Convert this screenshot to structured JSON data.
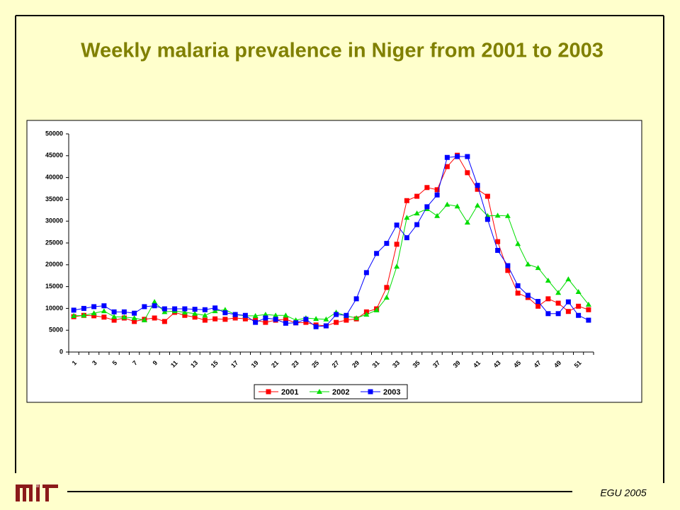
{
  "title": "Weekly malaria prevalence in Niger from 2001 to 2003",
  "footer": "EGU 2005",
  "chart_data": {
    "type": "line",
    "categories": [
      1,
      null,
      3,
      null,
      5,
      null,
      7,
      null,
      9,
      null,
      11,
      null,
      13,
      null,
      15,
      null,
      17,
      null,
      19,
      null,
      21,
      null,
      23,
      null,
      25,
      null,
      27,
      null,
      29,
      null,
      31,
      null,
      33,
      null,
      35,
      null,
      37,
      null,
      39,
      null,
      41,
      null,
      43,
      null,
      45,
      null,
      47,
      null,
      49,
      null,
      51,
      null
    ],
    "ylim": [
      0,
      50000
    ],
    "yticks": [
      0,
      5000,
      10000,
      15000,
      20000,
      25000,
      30000,
      35000,
      40000,
      45000,
      50000
    ],
    "legend": "bottom",
    "series": [
      {
        "name": "2001",
        "color": "#ff0000",
        "marker": "square",
        "values": [
          8100,
          8400,
          8300,
          8000,
          7300,
          7800,
          7000,
          7500,
          7800,
          7000,
          9100,
          8400,
          8000,
          7300,
          7600,
          7500,
          7800,
          7600,
          7300,
          6800,
          7300,
          7500,
          6700,
          6800,
          6200,
          6000,
          6800,
          7300,
          7600,
          9200,
          9900,
          14800,
          24700,
          34700,
          35700,
          37700,
          37200,
          42500,
          45100,
          41100,
          37300,
          35700,
          25300,
          18700,
          13500,
          12500,
          10500,
          12200,
          11200,
          9300,
          10500,
          9700
        ]
      },
      {
        "name": "2002",
        "color": "#00dd00",
        "marker": "triangle",
        "values": [
          8300,
          8400,
          8900,
          9400,
          8100,
          8000,
          7800,
          7300,
          11500,
          9200,
          9400,
          9100,
          8800,
          8400,
          9400,
          9700,
          8600,
          8300,
          8300,
          8600,
          8400,
          8400,
          7300,
          7800,
          7600,
          7500,
          9100,
          8300,
          7800,
          8600,
          9600,
          12500,
          19600,
          30800,
          31800,
          32800,
          31200,
          33800,
          33400,
          29700,
          33600,
          31200,
          31300,
          31200,
          24800,
          20100,
          19300,
          16400,
          13600,
          16700,
          13800,
          10900
        ]
      },
      {
        "name": "2003",
        "color": "#0000ff",
        "marker": "square",
        "values": [
          9600,
          10000,
          10400,
          10600,
          9200,
          9200,
          8900,
          10400,
          10600,
          9900,
          9900,
          9900,
          9800,
          9700,
          10100,
          9000,
          8600,
          8400,
          6800,
          7800,
          7500,
          6600,
          6700,
          7500,
          5800,
          6000,
          8600,
          8400,
          12200,
          18200,
          22600,
          24900,
          29100,
          26200,
          29200,
          33300,
          36000,
          44600,
          44800,
          44800,
          38200,
          30400,
          23300,
          19800,
          15200,
          13000,
          11600,
          8800,
          8800,
          11500,
          8400,
          7300
        ]
      }
    ]
  }
}
